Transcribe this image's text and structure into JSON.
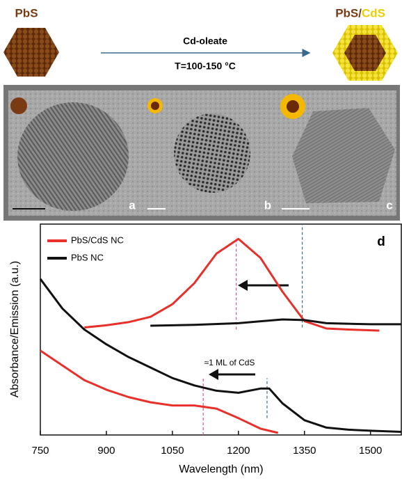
{
  "schematic": {
    "left_label": "PbS",
    "right_label_core": "PbS/",
    "right_label_shell": "CdS",
    "reagent": "Cd-oleate",
    "condition": "T=100-150 °C"
  },
  "tem": {
    "panels": [
      "a",
      "b",
      "c"
    ]
  },
  "chart_data": {
    "type": "line",
    "panel_label": "d",
    "x_label": "Wavelength (nm)",
    "y_label": "Absorbance/Emission (a.u.)",
    "annotation": "≈1 ML of CdS",
    "xlim": [
      750,
      1570
    ],
    "ylim": [
      0,
      1
    ],
    "xticks": [
      750,
      900,
      1050,
      1200,
      1350,
      1500
    ],
    "legend": "upper left",
    "series": [
      {
        "name": "PbS/CdS NC",
        "color": "#e8302a",
        "absorbance": {
          "x": [
            750,
            800,
            850,
            900,
            950,
            1000,
            1050,
            1100,
            1150,
            1200,
            1250,
            1290
          ],
          "values": [
            0.4,
            0.33,
            0.26,
            0.215,
            0.18,
            0.155,
            0.14,
            0.14,
            0.125,
            0.08,
            0.03,
            0.01
          ]
        },
        "emission": {
          "x": [
            850,
            900,
            950,
            1000,
            1050,
            1100,
            1150,
            1200,
            1250,
            1300,
            1350,
            1400,
            1450,
            1520
          ],
          "values": [
            0.51,
            0.52,
            0.535,
            0.56,
            0.62,
            0.72,
            0.86,
            0.93,
            0.84,
            0.68,
            0.54,
            0.505,
            0.5,
            0.495
          ]
        }
      },
      {
        "name": "PbS NC",
        "color": "#111111",
        "absorbance": {
          "x": [
            750,
            800,
            850,
            900,
            950,
            1000,
            1050,
            1100,
            1150,
            1200,
            1250,
            1270,
            1300,
            1350,
            1400,
            1450,
            1500,
            1570
          ],
          "values": [
            0.74,
            0.6,
            0.5,
            0.43,
            0.37,
            0.32,
            0.27,
            0.235,
            0.21,
            0.2,
            0.22,
            0.22,
            0.15,
            0.07,
            0.035,
            0.025,
            0.02,
            0.015
          ]
        },
        "emission": {
          "x": [
            1000,
            1100,
            1200,
            1300,
            1350,
            1400,
            1500,
            1570
          ],
          "values": [
            0.518,
            0.522,
            0.53,
            0.548,
            0.545,
            0.53,
            0.525,
            0.525
          ]
        }
      }
    ],
    "markers": [
      {
        "x": 1195,
        "from": 0.5,
        "to": 0.94,
        "color": "#e0509a"
      },
      {
        "x": 1345,
        "from": 0.51,
        "to": 1,
        "color": "#3a6a8a"
      },
      {
        "x": 1120,
        "from": 0.0,
        "to": 0.27,
        "color": "#e0509a"
      },
      {
        "x": 1265,
        "from": 0.08,
        "to": 0.27,
        "color": "#3a6a8a"
      }
    ]
  }
}
